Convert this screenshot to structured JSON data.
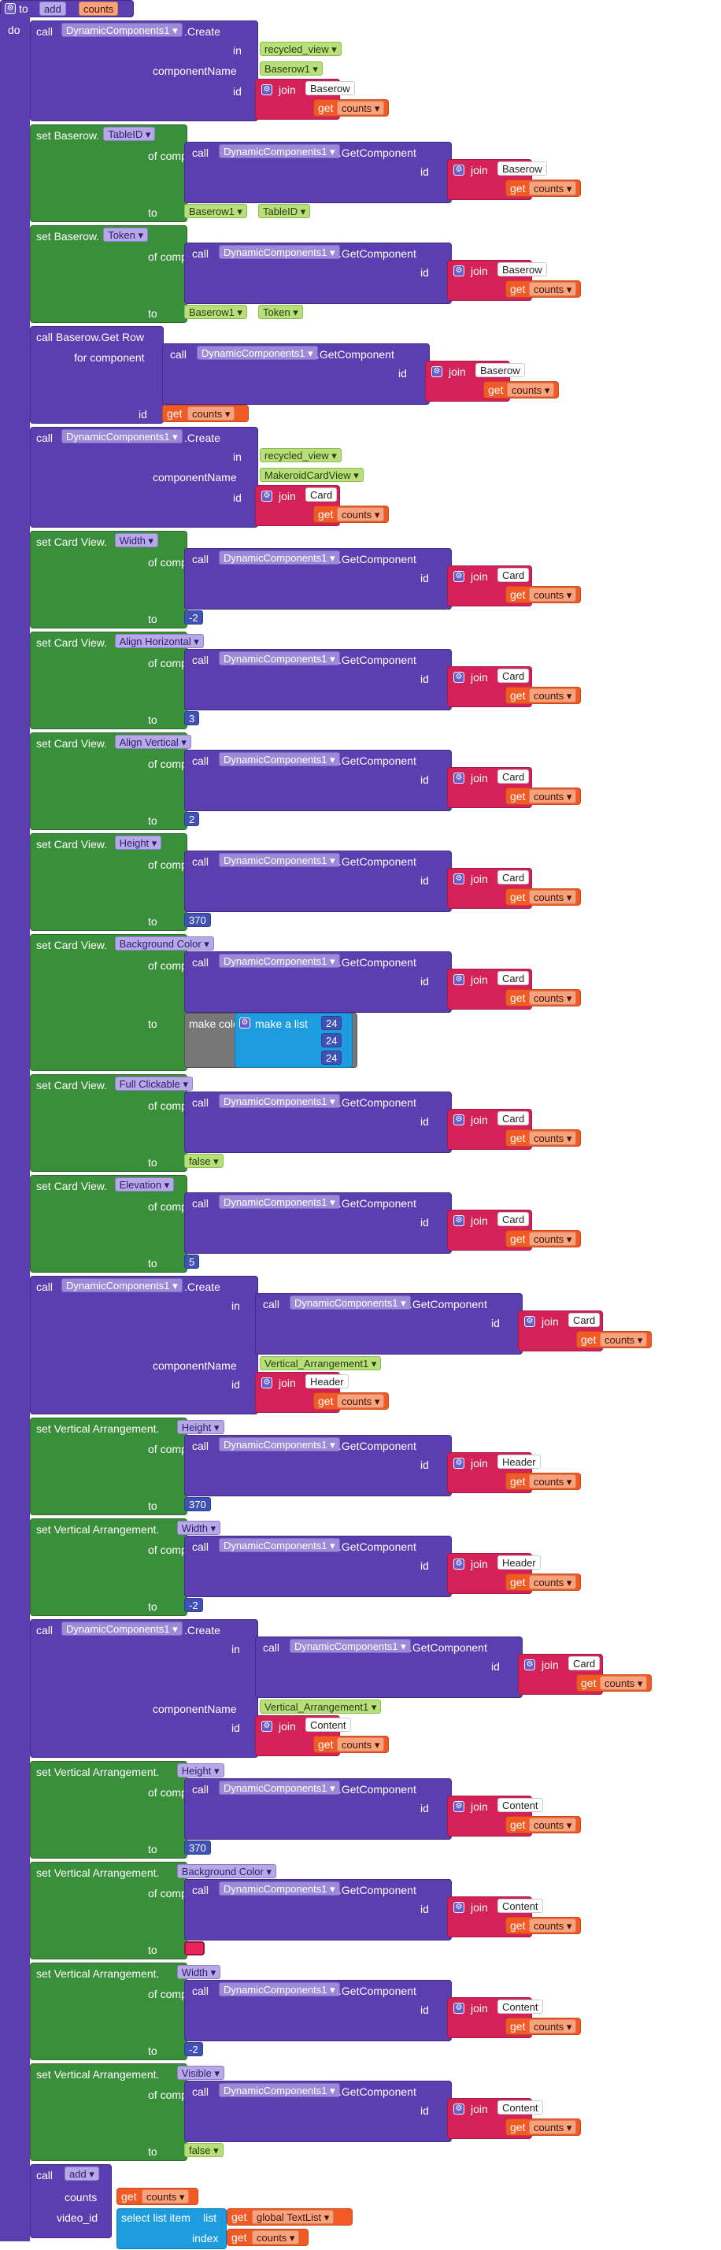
{
  "header": {
    "to": "to",
    "proc_name": "add",
    "param": "counts",
    "do": "do"
  },
  "kw": {
    "call": "call",
    "set": "set",
    "in": "in",
    "id": "id",
    "to": "to",
    "of_component": "of component",
    "componentName": "componentName",
    "for_component": "for component",
    "join": "join",
    "get": "get",
    "create": ".Create",
    "getcomponent": ".GetComponent",
    "dyn": "DynamicComponents1",
    "make_color": "make color",
    "make_list": "make a list",
    "counts": "counts",
    "quote": "\" \"",
    "index": "index",
    "list": "list",
    "video_id": "video_id"
  },
  "blocks": [
    {
      "kind": "create",
      "in": "recycled_view",
      "name": "Baserow1",
      "idtext": "Baserow"
    },
    {
      "kind": "setprop",
      "comp": "Baserow.",
      "prop": "TableID",
      "idtext": "Baserow",
      "to_a": "Baserow1",
      "to_b": "TableID"
    },
    {
      "kind": "setprop",
      "comp": "Baserow.",
      "prop": "Token",
      "idtext": "Baserow",
      "to_a": "Baserow1",
      "to_b": "Token"
    },
    {
      "kind": "getrow",
      "title": "call Baserow.Get Row",
      "idtext": "Baserow"
    },
    {
      "kind": "create",
      "in": "recycled_view",
      "name": "MakeroidCardView",
      "idtext": "Card"
    },
    {
      "kind": "setnum",
      "comp": "Card View.",
      "prop": "Width",
      "idtext": "Card",
      "val": "-2"
    },
    {
      "kind": "setnum",
      "comp": "Card View.",
      "prop": "Align Horizontal",
      "idtext": "Card",
      "val": "3"
    },
    {
      "kind": "setnum",
      "comp": "Card View.",
      "prop": "Align Vertical",
      "idtext": "Card",
      "val": "2"
    },
    {
      "kind": "setnum",
      "comp": "Card View.",
      "prop": "Height",
      "idtext": "Card",
      "val": "370"
    },
    {
      "kind": "setcolor",
      "comp": "Card View.",
      "prop": "Background Color",
      "idtext": "Card",
      "vals": [
        "24",
        "24",
        "24"
      ]
    },
    {
      "kind": "setbool",
      "comp": "Card View.",
      "prop": "Full Clickable",
      "idtext": "Card",
      "val": "false"
    },
    {
      "kind": "setnum",
      "comp": "Card View.",
      "prop": "Elevation",
      "idtext": "Card",
      "val": "5"
    },
    {
      "kind": "create2",
      "in_idtext": "Card",
      "name": "Vertical_Arrangement1",
      "idtext": "Header"
    },
    {
      "kind": "setnum",
      "comp": "Vertical Arrangement.",
      "prop": "Height",
      "idtext": "Header",
      "val": "370"
    },
    {
      "kind": "setnum",
      "comp": "Vertical Arrangement.",
      "prop": "Width",
      "idtext": "Header",
      "val": "-2"
    },
    {
      "kind": "create2",
      "in_idtext": "Card",
      "name": "Vertical_Arrangement1",
      "idtext": "Content"
    },
    {
      "kind": "setnum",
      "comp": "Vertical Arrangement.",
      "prop": "Height",
      "idtext": "Content",
      "val": "370"
    },
    {
      "kind": "setswatch",
      "comp": "Vertical Arrangement.",
      "prop": "Background Color",
      "idtext": "Content",
      "swatch": "#e8245a"
    },
    {
      "kind": "setnum",
      "comp": "Vertical Arrangement.",
      "prop": "Width",
      "idtext": "Content",
      "val": "-2"
    },
    {
      "kind": "setbool",
      "comp": "Vertical Arrangement.",
      "prop": "Visible",
      "idtext": "Content",
      "val": "false"
    }
  ],
  "footer": {
    "proc": "add",
    "counts_label": "counts",
    "video_label": "video_id",
    "select": "select list item",
    "list_label": "list",
    "global": "global TextList",
    "index_label": "index"
  },
  "colors": {
    "purple": "#5b3fb0",
    "green": "#3a8f3a",
    "pink": "#d4215a",
    "orange": "#f15a24",
    "blue": "#1e9ce0"
  }
}
